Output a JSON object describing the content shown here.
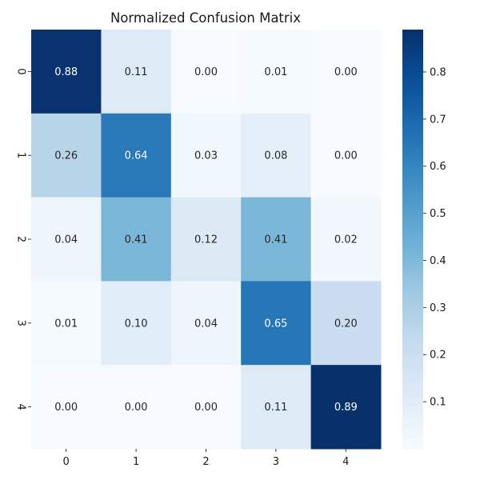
{
  "chart_data": {
    "type": "heatmap",
    "title": "Normalized Confusion Matrix",
    "x_categories": [
      "0",
      "1",
      "2",
      "3",
      "4"
    ],
    "y_categories": [
      "0",
      "1",
      "2",
      "3",
      "4"
    ],
    "values": [
      [
        0.88,
        0.11,
        0.0,
        0.01,
        0.0
      ],
      [
        0.26,
        0.64,
        0.03,
        0.08,
        0.0
      ],
      [
        0.04,
        0.41,
        0.12,
        0.41,
        0.02
      ],
      [
        0.01,
        0.1,
        0.04,
        0.65,
        0.2
      ],
      [
        0.0,
        0.0,
        0.0,
        0.11,
        0.89
      ]
    ],
    "cell_labels": [
      [
        "0.88",
        "0.11",
        "0.00",
        "0.01",
        "0.00"
      ],
      [
        "0.26",
        "0.64",
        "0.03",
        "0.08",
        "0.00"
      ],
      [
        "0.04",
        "0.41",
        "0.12",
        "0.41",
        "0.02"
      ],
      [
        "0.01",
        "0.10",
        "0.04",
        "0.65",
        "0.20"
      ],
      [
        "0.00",
        "0.00",
        "0.00",
        "0.11",
        "0.89"
      ]
    ],
    "colormap": "Blues",
    "colorbar": {
      "range": [
        0.0,
        0.89
      ],
      "ticks": [
        0.1,
        0.2,
        0.3,
        0.4,
        0.5,
        0.6,
        0.7,
        0.8
      ],
      "tick_labels": [
        "0.1",
        "0.2",
        "0.3",
        "0.4",
        "0.5",
        "0.6",
        "0.7",
        "0.8"
      ]
    },
    "xlabel": "",
    "ylabel": "",
    "grid": false
  }
}
